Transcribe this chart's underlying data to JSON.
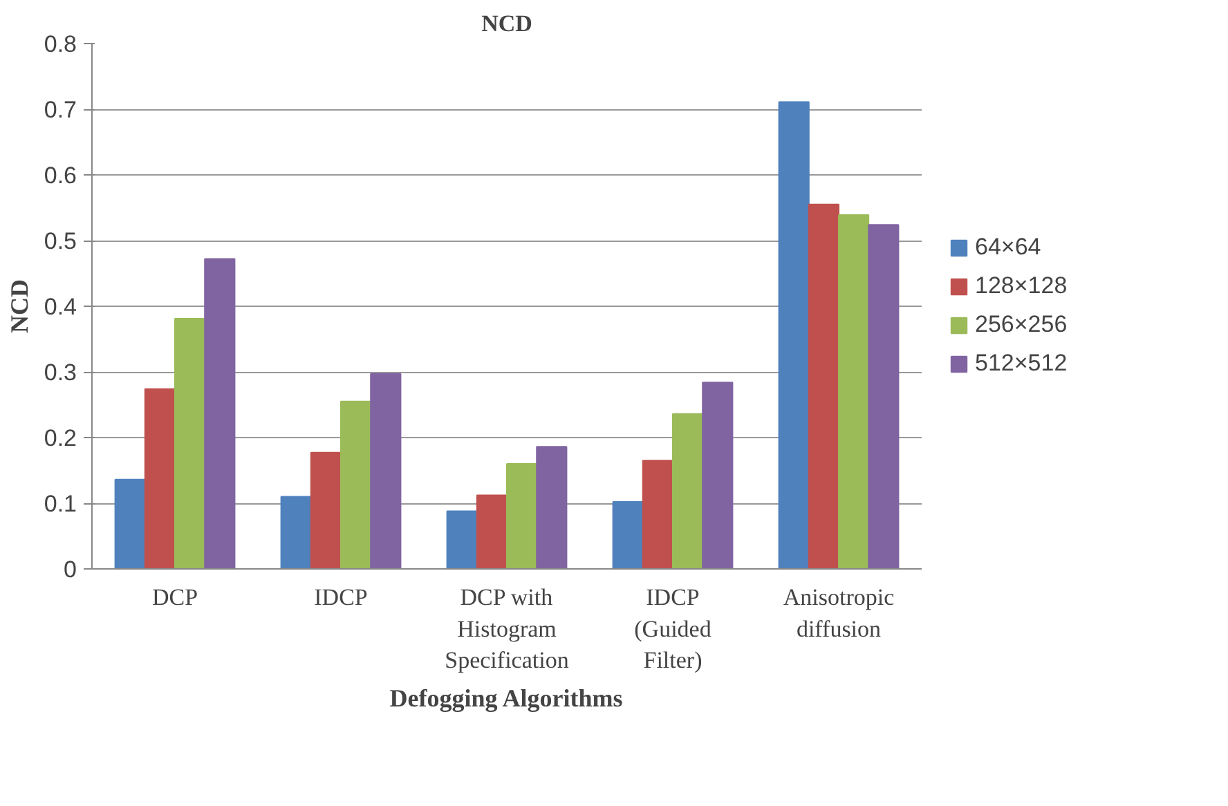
{
  "chart_data": {
    "type": "bar",
    "title": "NCD",
    "xlabel": "Defogging Algorithms",
    "ylabel": "NCD",
    "categories": [
      "DCP",
      "IDCP",
      "DCP with\nHistogram\nSpecification",
      "IDCP\n(Guided\nFilter)",
      "Anisotropic\ndiffusion"
    ],
    "series": [
      {
        "name": "64×64",
        "color": "#4f81bd",
        "values": [
          0.136,
          0.11,
          0.088,
          0.102,
          0.711
        ]
      },
      {
        "name": "128×128",
        "color": "#c0504d",
        "values": [
          0.274,
          0.177,
          0.112,
          0.165,
          0.555
        ]
      },
      {
        "name": "256×256",
        "color": "#9bbb59",
        "values": [
          0.381,
          0.255,
          0.16,
          0.236,
          0.539
        ]
      },
      {
        "name": "512×512",
        "color": "#8064a2",
        "values": [
          0.472,
          0.297,
          0.186,
          0.284,
          0.524
        ]
      }
    ],
    "ylim": [
      0,
      0.8
    ],
    "yticks": [
      0,
      0.1,
      0.2,
      0.3,
      0.4,
      0.5,
      0.6,
      0.7,
      0.8
    ],
    "grid": "y",
    "legend": "right"
  }
}
